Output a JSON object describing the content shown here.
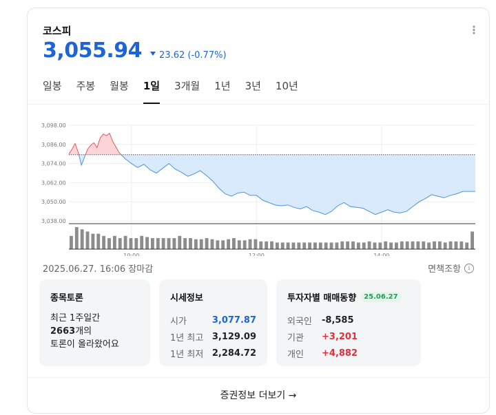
{
  "header": {
    "name": "코스피",
    "price": "3,055.94",
    "change": "23.62 (-0.77%)",
    "more_icon": "kebab-icon"
  },
  "tabs": [
    {
      "label": "일봉"
    },
    {
      "label": "주봉"
    },
    {
      "label": "월봉"
    },
    {
      "label": "1일"
    },
    {
      "label": "3개월"
    },
    {
      "label": "1년"
    },
    {
      "label": "3년"
    },
    {
      "label": "10년"
    }
  ],
  "active_tab": "1일",
  "footer_info": {
    "date": "2025.06.27. 16:06 장마감",
    "disclaimer": "면책조항"
  },
  "discussion": {
    "title": "종목토론",
    "line1": "최근 1주일간",
    "count": "2663",
    "count_suffix": "개의",
    "line3": "토론이 올라왔어요"
  },
  "market_info": {
    "title": "시세정보",
    "rows": [
      {
        "label": "시가",
        "value": "3,077.87"
      },
      {
        "label": "1년 최고",
        "value": "3,129.09"
      },
      {
        "label": "1년 최저",
        "value": "2,284.72"
      }
    ]
  },
  "investors": {
    "title": "투자자별 매매동향",
    "date_badge": "25.06.27",
    "rows": [
      {
        "label": "외국인",
        "value": "-8,585"
      },
      {
        "label": "기관",
        "value": "+3,201"
      },
      {
        "label": "개인",
        "value": "+4,882"
      }
    ]
  },
  "more_link": "증권정보 더보기 →",
  "colors": {
    "accent_blue": "#1d64d8",
    "up_red": "#e0303a",
    "down_fill": "#d8eafb",
    "up_fill": "#fbd5d8"
  },
  "chart_data": {
    "type": "area",
    "y_ticks": [
      "3,098.00",
      "3,086.00",
      "3,074.00",
      "3,062.00",
      "3,050.00",
      "3,038.00"
    ],
    "ylim": [
      3038,
      3098
    ],
    "x_ticks": [
      "10:00",
      "12:00",
      "14:00"
    ],
    "reference_price": 3079.56,
    "x": [
      9.0,
      9.05,
      9.1,
      9.15,
      9.2,
      9.25,
      9.3,
      9.35,
      9.4,
      9.45,
      9.5,
      9.55,
      9.6,
      9.65,
      9.7,
      9.75,
      9.8,
      9.85,
      9.9,
      10.0,
      10.1,
      10.2,
      10.3,
      10.4,
      10.5,
      10.6,
      10.7,
      10.8,
      10.9,
      11.0,
      11.1,
      11.2,
      11.3,
      11.4,
      11.5,
      11.6,
      11.7,
      11.8,
      11.9,
      12.0,
      12.1,
      12.2,
      12.3,
      12.4,
      12.5,
      12.6,
      12.7,
      12.8,
      12.9,
      13.0,
      13.1,
      13.2,
      13.3,
      13.4,
      13.5,
      13.6,
      13.7,
      13.8,
      13.9,
      14.0,
      14.1,
      14.2,
      14.3,
      14.4,
      14.5,
      14.6,
      14.7,
      14.8,
      14.9,
      15.0,
      15.1,
      15.2,
      15.3,
      15.4,
      15.5
    ],
    "y": [
      3080.0,
      3083.0,
      3086.5,
      3081.0,
      3073.0,
      3078.0,
      3083.0,
      3085.5,
      3087.0,
      3084.0,
      3090.0,
      3092.5,
      3091.5,
      3093.0,
      3088.0,
      3084.5,
      3081.0,
      3079.0,
      3077.0,
      3074.0,
      3071.5,
      3073.5,
      3070.0,
      3068.0,
      3071.0,
      3074.0,
      3070.5,
      3068.5,
      3066.0,
      3067.5,
      3069.5,
      3066.5,
      3063.0,
      3058.5,
      3055.0,
      3053.5,
      3055.5,
      3056.0,
      3054.0,
      3054.0,
      3051.0,
      3049.5,
      3048.0,
      3047.5,
      3048.0,
      3046.5,
      3045.5,
      3047.0,
      3044.5,
      3043.5,
      3042.0,
      3044.0,
      3047.5,
      3049.5,
      3047.0,
      3046.5,
      3046.0,
      3044.0,
      3042.0,
      3043.5,
      3045.0,
      3043.5,
      3043.0,
      3044.0,
      3047.0,
      3050.0,
      3052.0,
      3054.5,
      3053.5,
      3052.5,
      3054.0,
      3055.0,
      3056.5,
      3056.5,
      3056.5
    ],
    "volume": [
      0.6,
      1.0,
      0.9,
      0.8,
      0.7,
      0.7,
      0.6,
      0.5,
      0.6,
      0.5,
      0.6,
      0.5,
      0.5,
      0.6,
      0.55,
      0.5,
      0.5,
      0.5,
      0.5,
      0.5,
      0.6,
      0.5,
      0.5,
      0.45,
      0.45,
      0.5,
      0.45,
      0.4,
      0.4,
      0.45,
      0.5,
      0.4,
      0.4,
      0.45,
      0.45,
      0.35,
      0.35,
      0.35,
      0.3,
      0.3,
      0.3,
      0.3,
      0.3,
      0.3,
      0.3,
      0.3,
      0.3,
      0.3,
      0.3,
      0.3,
      0.35,
      0.35,
      0.35,
      0.3,
      0.3,
      0.35,
      0.3,
      0.3,
      0.35,
      0.3,
      0.3,
      0.35,
      0.35,
      0.35,
      0.35,
      0.35,
      0.3,
      0.35,
      0.35,
      0.3,
      0.35,
      0.35,
      0.35,
      0.3,
      0.8
    ]
  }
}
